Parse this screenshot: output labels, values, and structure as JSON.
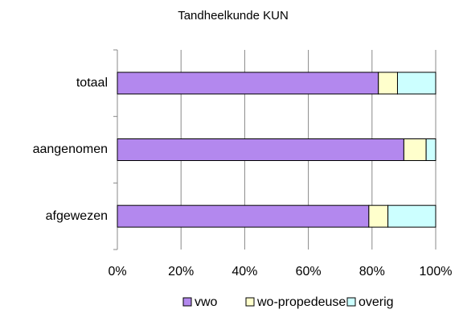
{
  "chart_data": {
    "type": "stacked-bar-horizontal",
    "title": "Tandheelkunde KUN",
    "categories": [
      "totaal",
      "aangenomen",
      "afgewezen"
    ],
    "series": [
      {
        "name": "vwo",
        "color": "#b388ee",
        "values": [
          82,
          90,
          79
        ]
      },
      {
        "name": "wo-propedeuse",
        "color": "#ffffcc",
        "values": [
          6,
          7,
          6
        ]
      },
      {
        "name": "overig",
        "color": "#ccffff",
        "values": [
          12,
          3,
          15
        ]
      }
    ],
    "xlim": [
      0,
      100
    ],
    "xticks": [
      {
        "value": 0,
        "label": "0%"
      },
      {
        "value": 20,
        "label": "20%"
      },
      {
        "value": 40,
        "label": "40%"
      },
      {
        "value": 60,
        "label": "60%"
      },
      {
        "value": 80,
        "label": "80%"
      },
      {
        "value": 100,
        "label": "100%"
      }
    ],
    "grid": true,
    "legend": "bottom"
  }
}
